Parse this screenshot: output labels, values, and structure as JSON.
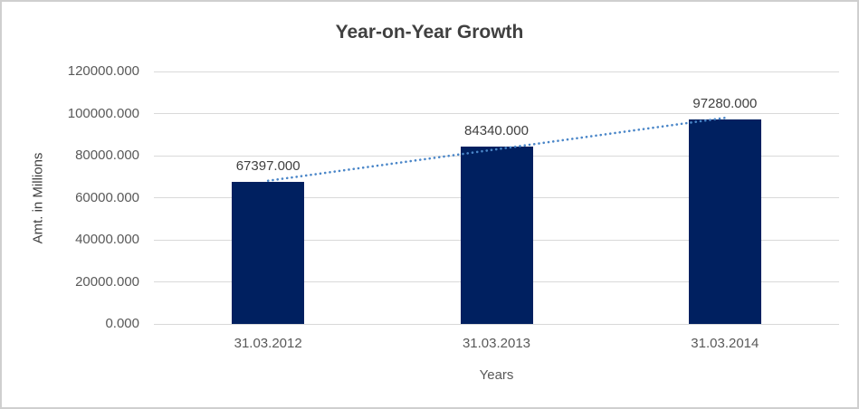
{
  "chart_data": {
    "type": "bar",
    "title": "Year-on-Year Growth",
    "xlabel": "Years",
    "ylabel": "Amt. in Millions",
    "categories": [
      "31.03.2012",
      "31.03.2013",
      "31.03.2014"
    ],
    "values": [
      67397,
      84340,
      97280
    ],
    "data_labels": [
      "67397.000",
      "84340.000",
      "97280.000"
    ],
    "ylim": [
      0,
      120000
    ],
    "yticks": [
      {
        "value": 0,
        "label": "0.000"
      },
      {
        "value": 20000,
        "label": "20000.000"
      },
      {
        "value": 40000,
        "label": "40000.000"
      },
      {
        "value": 60000,
        "label": "60000.000"
      },
      {
        "value": 80000,
        "label": "80000.000"
      },
      {
        "value": 100000,
        "label": "100000.000"
      },
      {
        "value": 120000,
        "label": "120000.000"
      }
    ],
    "grid": "horizontal",
    "legend": "none",
    "trendline": {
      "type": "linear",
      "style": "dotted",
      "start_value": 68064,
      "end_value": 97947
    },
    "colors": {
      "bar": "#002060",
      "trendline": "#4a86c8",
      "gridline": "#d9d9d9",
      "title_text": "#404040",
      "axis_text": "#595959"
    }
  }
}
